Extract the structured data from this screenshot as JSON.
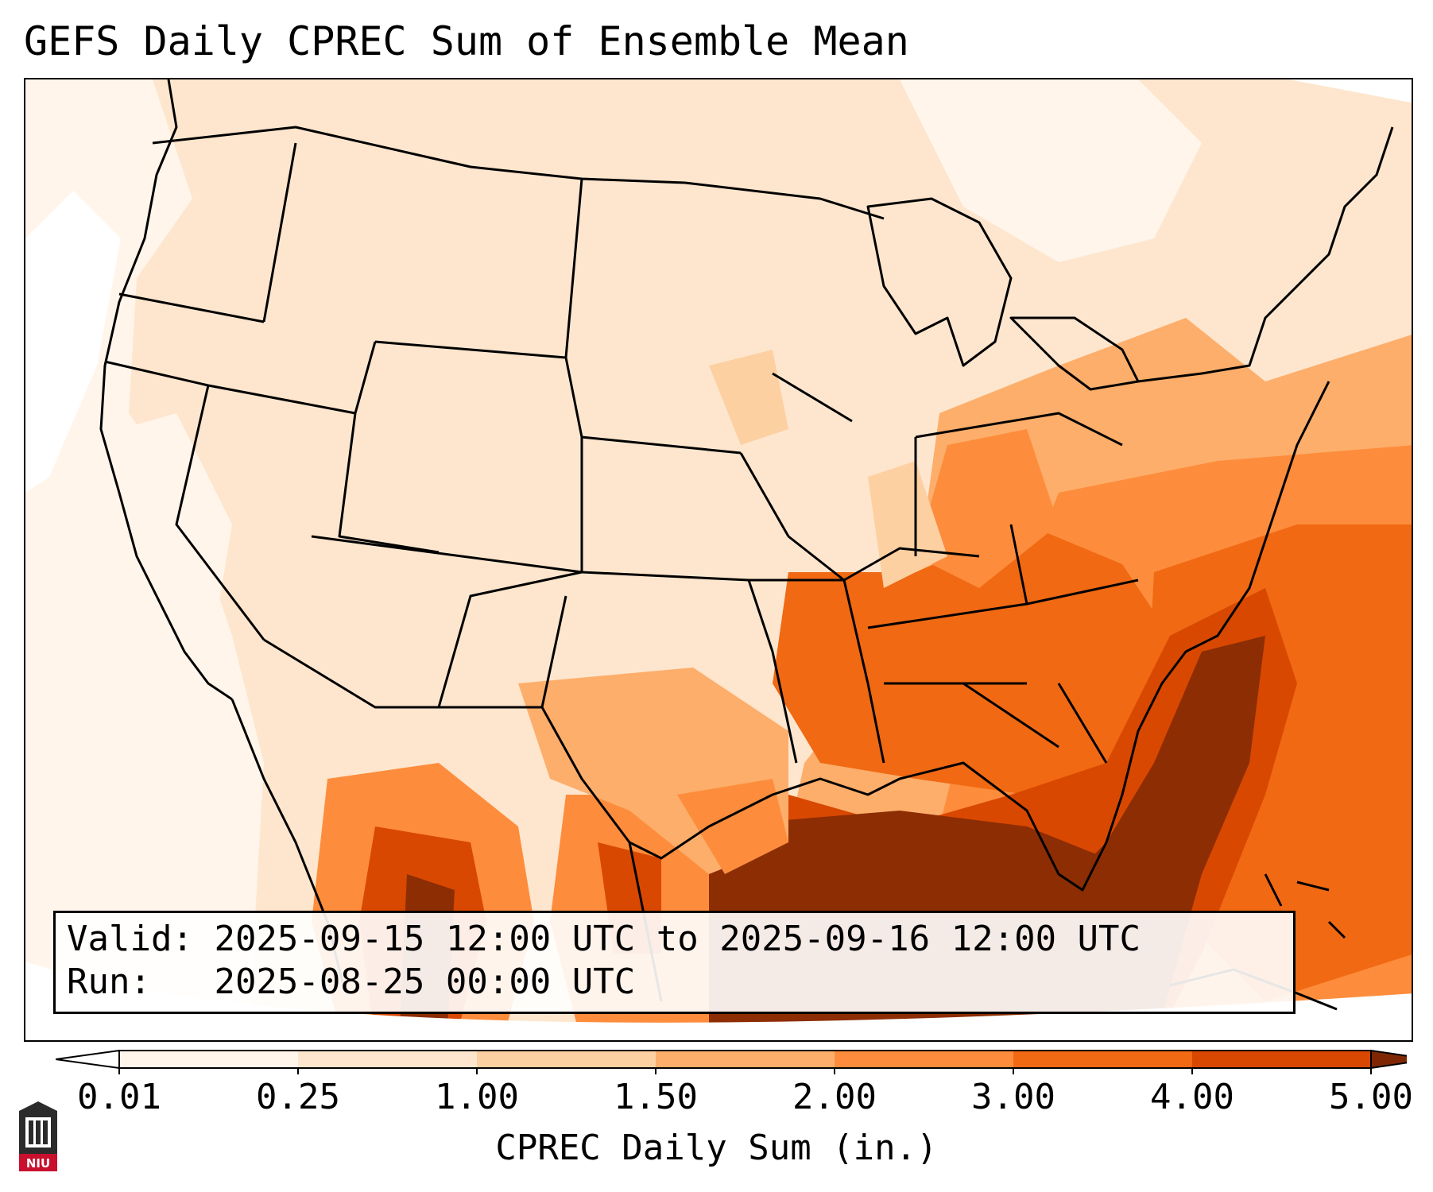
{
  "title": "GEFS Daily CPREC Sum of Ensemble Mean",
  "info": {
    "valid_label": "Valid:",
    "valid_value": "2025-09-15 12:00 UTC to 2025-09-16 12:00 UTC",
    "run_label": "Run:",
    "run_value": "2025-08-25 00:00 UTC"
  },
  "colorbar": {
    "label": "CPREC Daily Sum (in.)",
    "ticks": [
      "0.01",
      "0.25",
      "1.00",
      "1.50",
      "2.00",
      "3.00",
      "4.00",
      "5.00"
    ],
    "colors": [
      "#fff5eb",
      "#fee6ce",
      "#fdd0a2",
      "#fdae6b",
      "#fd8d3c",
      "#f16913",
      "#d94801",
      "#8c2d04"
    ],
    "under_color": "#ffffff",
    "over_color": "#7f2704"
  },
  "logo": {
    "text": "NIU",
    "color": "#c8102e"
  }
}
